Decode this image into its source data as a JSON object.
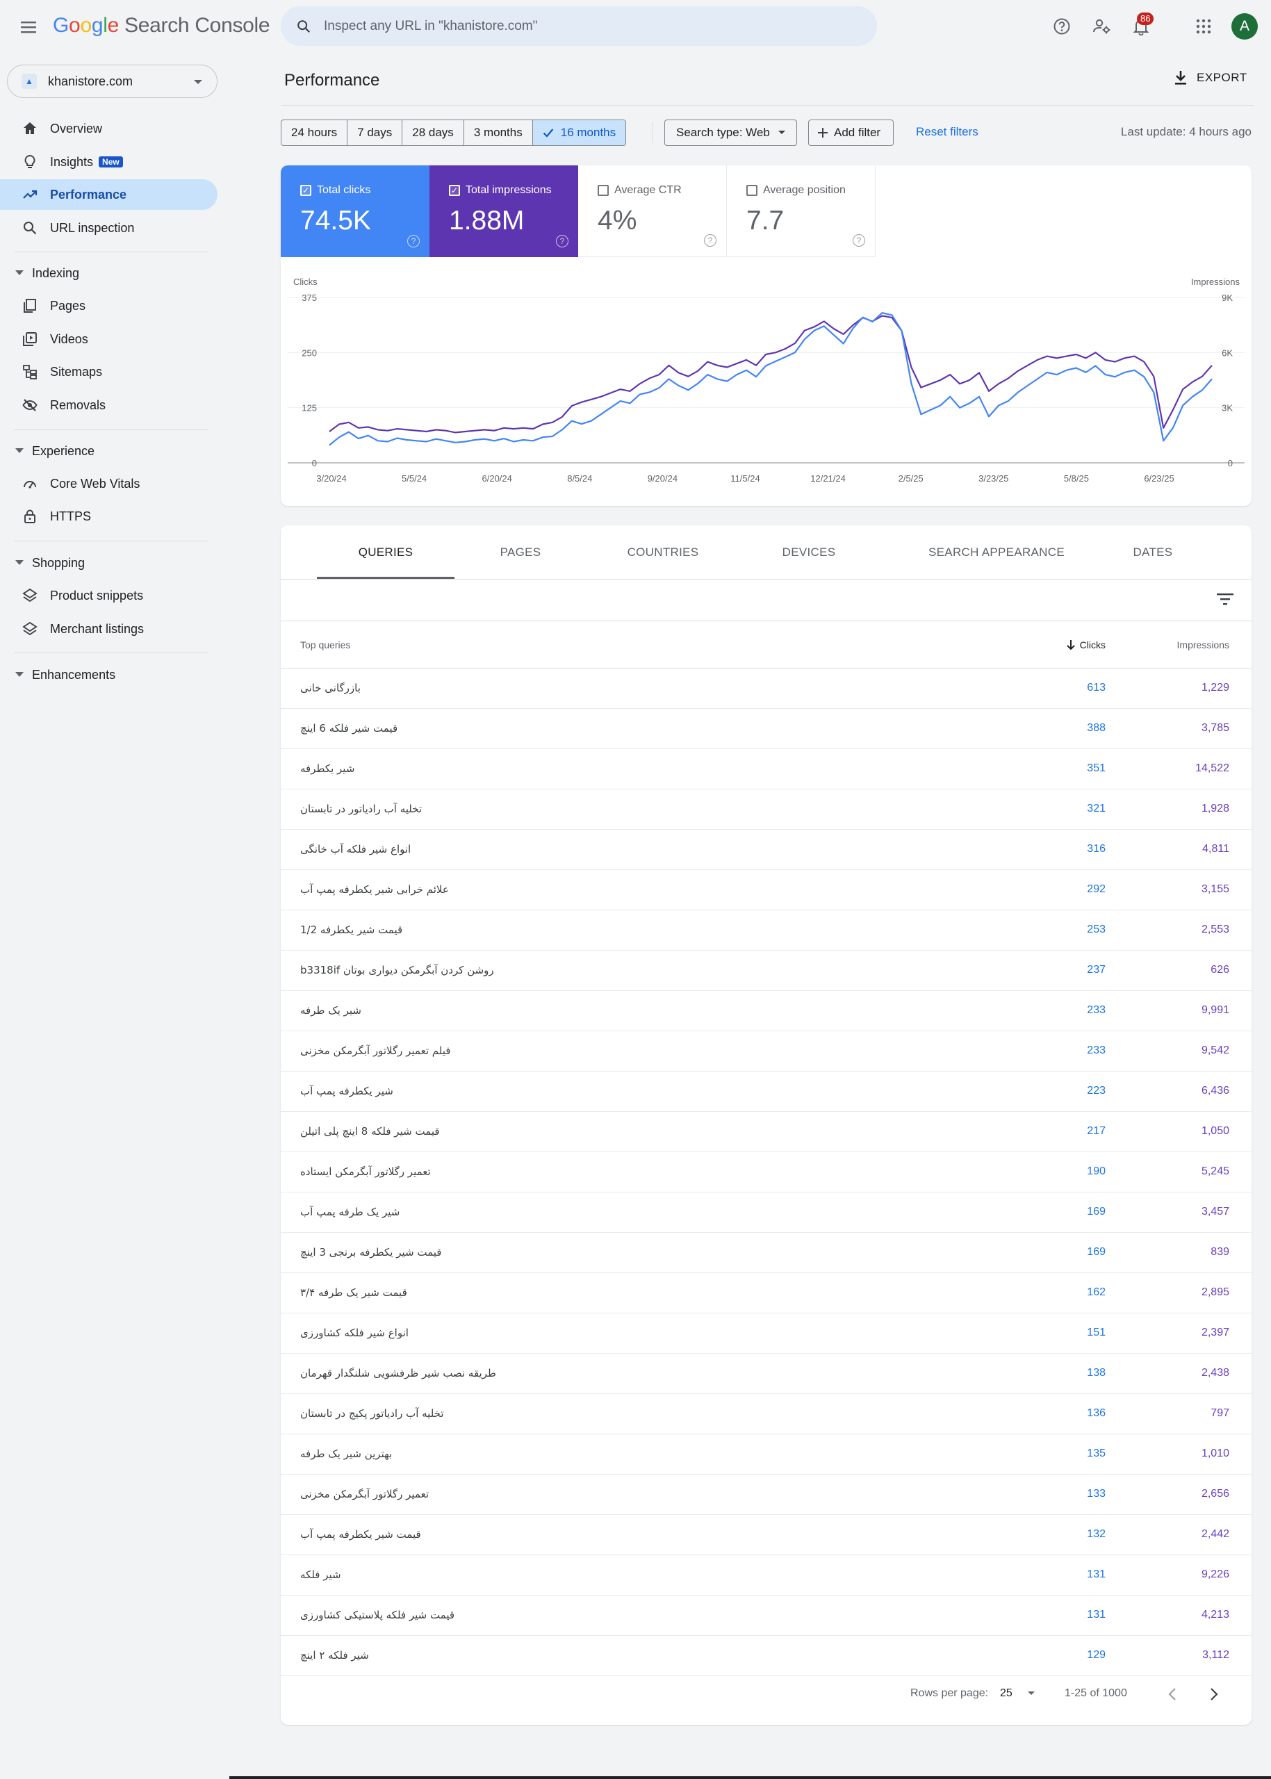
{
  "header": {
    "logo_google": "Google",
    "logo_product": "Search Console",
    "search_placeholder": "Inspect any URL in \"khanistore.com\"",
    "notification_count": "86",
    "avatar_letter": "A"
  },
  "property": {
    "name": "khanistore.com"
  },
  "nav": {
    "overview": "Overview",
    "insights": "Insights",
    "insights_badge": "New",
    "performance": "Performance",
    "url_inspection": "URL inspection",
    "indexing": "Indexing",
    "pages": "Pages",
    "videos": "Videos",
    "sitemaps": "Sitemaps",
    "removals": "Removals",
    "experience": "Experience",
    "core_web_vitals": "Core Web Vitals",
    "https": "HTTPS",
    "shopping": "Shopping",
    "product_snippets": "Product snippets",
    "merchant_listings": "Merchant listings",
    "enhancements": "Enhancements"
  },
  "page": {
    "title": "Performance",
    "export_label": "EXPORT"
  },
  "filters": {
    "ranges": [
      "24 hours",
      "7 days",
      "28 days",
      "3 months",
      "16 months"
    ],
    "selected_range": "16 months",
    "search_type": "Search type: Web",
    "add_filter": "Add filter",
    "reset": "Reset filters",
    "last_update": "Last update: 4 hours ago"
  },
  "metrics": {
    "clicks": {
      "label": "Total clicks",
      "value": "74.5K",
      "checked": true,
      "color": "#4285f4"
    },
    "impressions": {
      "label": "Total impressions",
      "value": "1.88M",
      "checked": true,
      "color": "#5e35b1"
    },
    "ctr": {
      "label": "Average CTR",
      "value": "4%",
      "checked": false
    },
    "position": {
      "label": "Average position",
      "value": "7.7",
      "checked": false
    }
  },
  "chart_data": {
    "type": "line",
    "ylabel": "Clicks",
    "y2label": "Impressions",
    "ylim": [
      0,
      375
    ],
    "y2lim": [
      0,
      9000
    ],
    "y_ticks": [
      "0",
      "125",
      "250",
      "375"
    ],
    "y2_ticks": [
      "0",
      "3K",
      "6K",
      "9K"
    ],
    "x_ticks": [
      "3/20/24",
      "5/5/24",
      "6/20/24",
      "8/5/24",
      "9/20/24",
      "11/5/24",
      "12/21/24",
      "2/5/25",
      "3/23/25",
      "5/8/25",
      "6/23/25"
    ],
    "grid": true,
    "series": [
      {
        "name": "Clicks",
        "color": "#4285f4",
        "axis": "left",
        "values": [
          40,
          58,
          70,
          55,
          62,
          50,
          48,
          56,
          52,
          50,
          48,
          54,
          50,
          46,
          48,
          52,
          54,
          50,
          55,
          48,
          52,
          50,
          58,
          60,
          75,
          95,
          88,
          95,
          110,
          125,
          140,
          135,
          155,
          160,
          170,
          190,
          175,
          165,
          180,
          200,
          190,
          185,
          200,
          210,
          195,
          220,
          230,
          240,
          250,
          280,
          300,
          310,
          290,
          270,
          305,
          330,
          320,
          340,
          335,
          300,
          180,
          110,
          120,
          130,
          150,
          125,
          135,
          150,
          105,
          130,
          140,
          160,
          175,
          190,
          205,
          200,
          210,
          215,
          205,
          220,
          200,
          195,
          205,
          210,
          195,
          160,
          50,
          80,
          130,
          150,
          165,
          190
        ]
      },
      {
        "name": "Impressions",
        "color": "#5e35b1",
        "axis": "right",
        "values": [
          1700,
          2100,
          2200,
          1900,
          1950,
          1800,
          1750,
          1850,
          1800,
          1750,
          1700,
          1800,
          1750,
          1650,
          1700,
          1750,
          1800,
          1750,
          1900,
          1850,
          1900,
          1850,
          2100,
          2200,
          2500,
          3100,
          3300,
          3450,
          3600,
          3800,
          4000,
          3900,
          4300,
          4600,
          4800,
          5300,
          4900,
          4700,
          5000,
          5500,
          5300,
          5200,
          5400,
          5600,
          5300,
          5900,
          6000,
          6200,
          6500,
          7200,
          7400,
          7700,
          7300,
          7000,
          7500,
          7900,
          7700,
          8000,
          7900,
          7200,
          5200,
          4100,
          4300,
          4500,
          4800,
          4300,
          4500,
          4900,
          3900,
          4300,
          4600,
          5000,
          5300,
          5600,
          5800,
          5700,
          5800,
          5900,
          5700,
          6000,
          5600,
          5500,
          5700,
          5800,
          5500,
          4700,
          1900,
          2900,
          4000,
          4400,
          4700,
          5300
        ]
      }
    ]
  },
  "tabs": [
    "QUERIES",
    "PAGES",
    "COUNTRIES",
    "DEVICES",
    "SEARCH APPEARANCE",
    "DATES"
  ],
  "table": {
    "headers": {
      "query": "Top queries",
      "clicks": "Clicks",
      "impressions": "Impressions"
    },
    "rows": [
      {
        "query": "بازرگانی خانی",
        "clicks": "613",
        "impressions": "1,229"
      },
      {
        "query": "قیمت شیر فلکه 6 اینچ",
        "clicks": "388",
        "impressions": "3,785"
      },
      {
        "query": "شیر یکطرفه",
        "clicks": "351",
        "impressions": "14,522"
      },
      {
        "query": "تخلیه آب رادیاتور در تابستان",
        "clicks": "321",
        "impressions": "1,928"
      },
      {
        "query": "انواع شیر فلکه آب خانگی",
        "clicks": "316",
        "impressions": "4,811"
      },
      {
        "query": "علائم خرابی شیر یکطرفه پمپ آب",
        "clicks": "292",
        "impressions": "3,155"
      },
      {
        "query": "قیمت شیر یکطرفه 1/2",
        "clicks": "253",
        "impressions": "2,553"
      },
      {
        "query": "روشن کردن آبگرمکن دیواری بوتان b3318if",
        "clicks": "237",
        "impressions": "626"
      },
      {
        "query": "شیر یک طرفه",
        "clicks": "233",
        "impressions": "9,991"
      },
      {
        "query": "فیلم تعمیر رگلاتور آبگرمکن مخزنی",
        "clicks": "233",
        "impressions": "9,542"
      },
      {
        "query": "شیر یکطرفه پمپ آب",
        "clicks": "223",
        "impressions": "6,436"
      },
      {
        "query": "قیمت شیر فلکه 8 اینچ پلی اتیلن",
        "clicks": "217",
        "impressions": "1,050"
      },
      {
        "query": "تعمیر رگلاتور آبگرمکن ایستاده",
        "clicks": "190",
        "impressions": "5,245"
      },
      {
        "query": "شیر یک طرفه پمپ آب",
        "clicks": "169",
        "impressions": "3,457"
      },
      {
        "query": "قیمت شیر یکطرفه برنجی 3 اینچ",
        "clicks": "169",
        "impressions": "839"
      },
      {
        "query": "قیمت شیر یک طرفه ۳/۴",
        "clicks": "162",
        "impressions": "2,895"
      },
      {
        "query": "انواع شیر فلکه کشاورزی",
        "clicks": "151",
        "impressions": "2,397"
      },
      {
        "query": "طریقه نصب شیر ظرفشویی شلنگدار قهرمان",
        "clicks": "138",
        "impressions": "2,438"
      },
      {
        "query": "تخلیه آب رادیاتور پکیج در تابستان",
        "clicks": "136",
        "impressions": "797"
      },
      {
        "query": "بهترین شیر یک طرفه",
        "clicks": "135",
        "impressions": "1,010"
      },
      {
        "query": "تعمیر رگلاتور آبگرمکن مخزنی",
        "clicks": "133",
        "impressions": "2,656"
      },
      {
        "query": "قیمت شیر یکطرفه پمپ آب",
        "clicks": "132",
        "impressions": "2,442"
      },
      {
        "query": "شیر فلکه",
        "clicks": "131",
        "impressions": "9,226"
      },
      {
        "query": "قیمت شیر فلکه پلاستیکی کشاورزی",
        "clicks": "131",
        "impressions": "4,213"
      },
      {
        "query": "شیر فلکه ۲ اینچ",
        "clicks": "129",
        "impressions": "3,112"
      }
    ]
  },
  "pagination": {
    "rows_per_page_label": "Rows per page:",
    "rows_per_page": "25",
    "range": "1-25 of 1000"
  }
}
